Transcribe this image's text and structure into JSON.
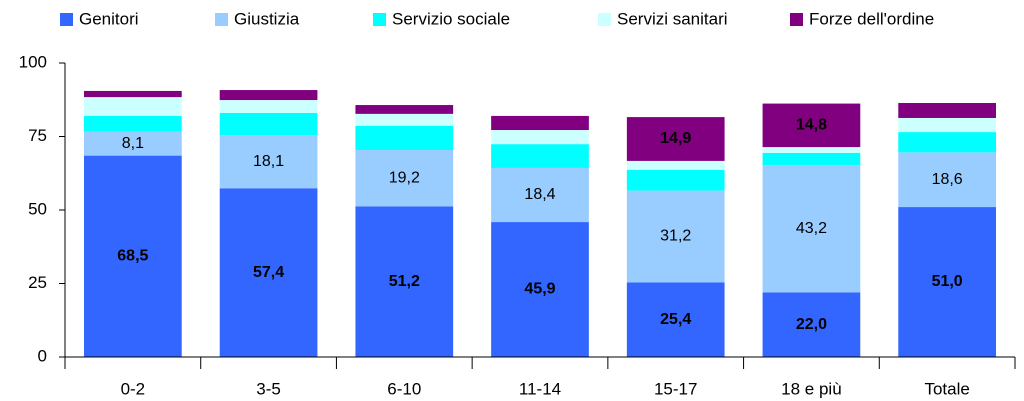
{
  "chart_data": {
    "type": "stacked_bar",
    "categories": [
      "0-2",
      "3-5",
      "6-10",
      "11-14",
      "15-17",
      "18 e più",
      "Totale"
    ],
    "series": [
      {
        "name": "Genitori",
        "color": "#3366ff",
        "values": [
          68.5,
          57.4,
          51.2,
          45.9,
          25.4,
          22.0,
          51.0
        ],
        "value_labels": [
          "68,5",
          "57,4",
          "51,2",
          "45,9",
          "25,4",
          "22,0",
          "51,0"
        ]
      },
      {
        "name": "Giustizia",
        "color": "#99ccff",
        "values": [
          8.1,
          18.1,
          19.2,
          18.4,
          31.2,
          43.2,
          18.6
        ],
        "value_labels": [
          "8,1",
          "18,1",
          "19,2",
          "18,4",
          "31,2",
          "43,2",
          "18,6"
        ]
      },
      {
        "name": "Servizio sociale",
        "color": "#00ffff",
        "values": [
          5.4,
          7.5,
          8.2,
          8.1,
          7.0,
          4.2,
          6.9
        ]
      },
      {
        "name": "Servizi sanitari",
        "color": "#ccffff",
        "values": [
          6.4,
          4.4,
          4.1,
          4.8,
          3.1,
          2.0,
          4.8
        ]
      },
      {
        "name": "Forze dell'ordine",
        "color": "#800080",
        "values": [
          2.1,
          3.4,
          3.0,
          4.8,
          14.9,
          14.8,
          5.1
        ],
        "value_labels": [
          null,
          null,
          null,
          null,
          "14,9",
          "14,8",
          null
        ]
      }
    ],
    "ylim": [
      0,
      100
    ],
    "yticks": [
      0,
      25,
      50,
      75,
      100
    ],
    "legend": "top"
  }
}
